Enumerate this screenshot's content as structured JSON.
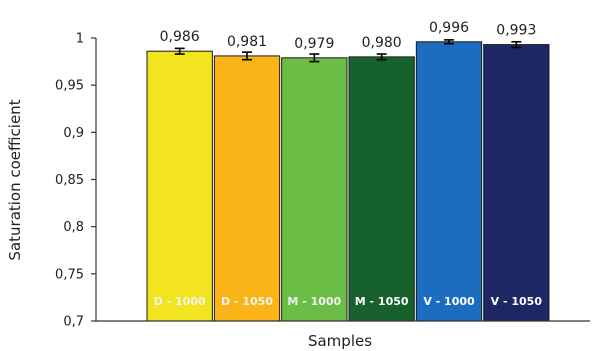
{
  "chart_data": {
    "type": "bar",
    "categories": [
      "D - 1000",
      "D - 1050",
      "M - 1000",
      "M - 1050",
      "V - 1000",
      "V - 1050"
    ],
    "values": [
      0.986,
      0.981,
      0.979,
      0.98,
      0.996,
      0.993
    ],
    "error": [
      0.003,
      0.004,
      0.004,
      0.003,
      0.002,
      0.003
    ],
    "value_labels": [
      "0,986",
      "0,981",
      "0,979",
      "0,980",
      "0,996",
      "0,993"
    ],
    "colors": [
      "#f2e51f",
      "#fbb417",
      "#6bbd45",
      "#17612c",
      "#1c6cbf",
      "#1d2764"
    ],
    "category_label_colors": [
      "#f2f2f2",
      "#f2f2f2",
      "#f2f2f2",
      "#ffffff",
      "#ffffff",
      "#ffffff"
    ],
    "xlabel": "Samples",
    "ylabel": "Saturation coefficient",
    "ylim": [
      0.7,
      1.0
    ],
    "yticks": [
      0.7,
      0.75,
      0.8,
      0.85,
      0.9,
      0.95,
      1.0
    ],
    "ytick_labels": [
      "0,7",
      "0,75",
      "0,8",
      "0,85",
      "0,9",
      "0,95",
      "1"
    ],
    "grid": false,
    "legend": "none"
  }
}
